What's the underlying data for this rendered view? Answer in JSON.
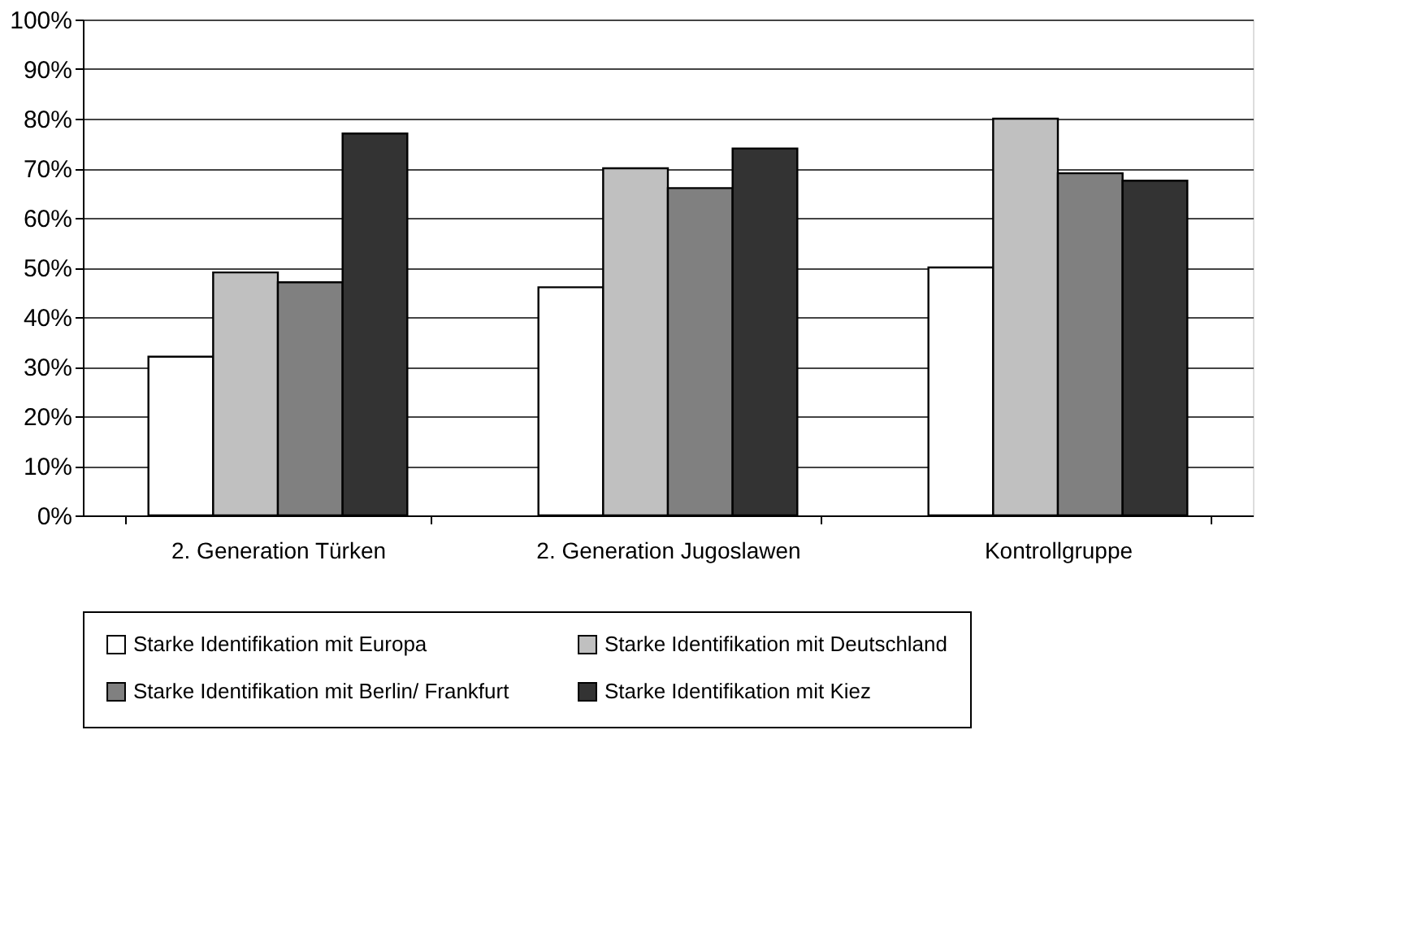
{
  "chart_data": {
    "type": "bar",
    "categories": [
      "2. Generation Türken",
      "2. Generation Jugoslawen",
      "Kontrollgruppe"
    ],
    "series": [
      {
        "name": "Starke Identifikation mit Europa",
        "color": "#ffffff",
        "values": [
          32,
          46,
          50
        ]
      },
      {
        "name": "Starke Identifikation mit Deutschland",
        "color": "#c0c0c0",
        "values": [
          49,
          70,
          80
        ]
      },
      {
        "name": "Starke Identifikation mit Berlin/ Frankfurt",
        "color": "#808080",
        "values": [
          47,
          66,
          69
        ]
      },
      {
        "name": "Starke Identifikation mit Kiez",
        "color": "#333333",
        "values": [
          77,
          74,
          67.5
        ]
      }
    ],
    "ylim": [
      0,
      100
    ],
    "yticks": [
      {
        "value": 0,
        "label": "0%"
      },
      {
        "value": 10,
        "label": "10%"
      },
      {
        "value": 20,
        "label": "20%"
      },
      {
        "value": 30,
        "label": "30%"
      },
      {
        "value": 40,
        "label": "40%"
      },
      {
        "value": 50,
        "label": "50%"
      },
      {
        "value": 60,
        "label": "60%"
      },
      {
        "value": 70,
        "label": "70%"
      },
      {
        "value": 80,
        "label": "80%"
      },
      {
        "value": 90,
        "label": "90%"
      },
      {
        "value": 100,
        "label": "100%"
      }
    ],
    "grid": "y",
    "legend": "bottom"
  }
}
